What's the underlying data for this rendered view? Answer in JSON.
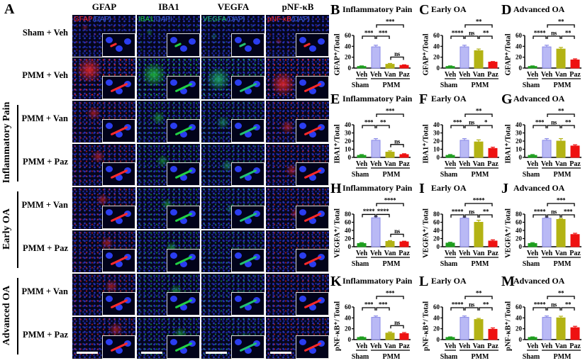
{
  "figure": {
    "panel_a_letter": "A",
    "columns": [
      {
        "header": "GFAP",
        "marker": "GFAP",
        "dapi": "/DAPI",
        "color": "#ff2a2a"
      },
      {
        "header": "IBA1",
        "marker": "IBA1",
        "dapi": "/DAPI",
        "color": "#22d044"
      },
      {
        "header": "VEGFA",
        "marker": "VEGFA",
        "dapi": "/DAPI",
        "color": "#22c070"
      },
      {
        "header": "pNF-κB",
        "marker": "pNF-κB",
        "dapi": "/DAPI",
        "color": "#ff2a2a"
      }
    ],
    "rows": [
      "Sham + Veh",
      "PMM + Veh",
      "PMM + Van",
      "PMM + Paz",
      "PMM + Van",
      "PMM + Paz",
      "PMM + Van",
      "PMM + Paz"
    ],
    "groups": [
      "Inflammatory Pain",
      "Early OA",
      "Advanced OA"
    ]
  },
  "chart_data": [
    {
      "panel": "B",
      "type": "bar",
      "title": "Inflammatory Pain",
      "ylabel": "GFAP⁺/Total",
      "ylim": [
        0,
        60
      ],
      "yticks": [
        0,
        20,
        40,
        60
      ],
      "categories": [
        "Veh",
        "Veh",
        "Van",
        "Paz"
      ],
      "groups": [
        "Sham",
        "PMM"
      ],
      "values": [
        3,
        39,
        7,
        5
      ],
      "errors": [
        1,
        3,
        1.5,
        1
      ],
      "colors": [
        "#1e9e1e",
        "#b9b9f5",
        "#b3b314",
        "#ee1111"
      ],
      "comparisons": [
        {
          "a": 0,
          "b": 1,
          "label": "***"
        },
        {
          "a": 1,
          "b": 2,
          "label": "***"
        },
        {
          "a": 2,
          "b": 3,
          "label": "ns"
        },
        {
          "a": 1,
          "b": 3,
          "label": "***"
        }
      ]
    },
    {
      "panel": "C",
      "type": "bar",
      "title": "Early   OA",
      "ylabel": "GFAP⁺/Total",
      "ylim": [
        0,
        60
      ],
      "yticks": [
        0,
        20,
        40,
        60
      ],
      "categories": [
        "Veh",
        "Veh",
        "Van",
        "Paz"
      ],
      "groups": [
        "Sham",
        "PMM"
      ],
      "values": [
        3,
        39,
        32,
        11
      ],
      "errors": [
        1,
        3,
        3,
        1
      ],
      "colors": [
        "#1e9e1e",
        "#b9b9f5",
        "#b3b314",
        "#ee1111"
      ],
      "comparisons": [
        {
          "a": 0,
          "b": 1,
          "label": "****"
        },
        {
          "a": 1,
          "b": 2,
          "label": "ns"
        },
        {
          "a": 2,
          "b": 3,
          "label": "**"
        },
        {
          "a": 1,
          "b": 3,
          "label": "**"
        }
      ]
    },
    {
      "panel": "D",
      "type": "bar",
      "title": "Advanced  OA",
      "ylabel": "GFAP⁺/Total",
      "ylim": [
        0,
        60
      ],
      "yticks": [
        0,
        20,
        40,
        60
      ],
      "categories": [
        "Veh",
        "Veh",
        "Van",
        "Paz"
      ],
      "groups": [
        "Sham",
        "PMM"
      ],
      "values": [
        3,
        39,
        35,
        15
      ],
      "errors": [
        1,
        3,
        3,
        2
      ],
      "colors": [
        "#1e9e1e",
        "#b9b9f5",
        "#b3b314",
        "#ee1111"
      ],
      "comparisons": [
        {
          "a": 0,
          "b": 1,
          "label": "****"
        },
        {
          "a": 1,
          "b": 2,
          "label": "ns"
        },
        {
          "a": 2,
          "b": 3,
          "label": "**"
        },
        {
          "a": 1,
          "b": 3,
          "label": "**"
        }
      ]
    },
    {
      "panel": "E",
      "type": "bar",
      "title": "Inflammatory Pain",
      "ylabel": "IBA1⁺/Total",
      "ylim": [
        0,
        40
      ],
      "yticks": [
        0,
        10,
        20,
        30,
        40
      ],
      "categories": [
        "Veh",
        "Veh",
        "Van",
        "Paz"
      ],
      "groups": [
        "Sham",
        "PMM"
      ],
      "values": [
        2.5,
        21,
        6.5,
        3.5
      ],
      "errors": [
        1,
        2,
        1.5,
        1
      ],
      "colors": [
        "#1e9e1e",
        "#b9b9f5",
        "#b3b314",
        "#ee1111"
      ],
      "comparisons": [
        {
          "a": 0,
          "b": 1,
          "label": "***"
        },
        {
          "a": 1,
          "b": 2,
          "label": "**"
        },
        {
          "a": 2,
          "b": 3,
          "label": "ns"
        },
        {
          "a": 1,
          "b": 3,
          "label": "***"
        }
      ]
    },
    {
      "panel": "F",
      "type": "bar",
      "title": "Early   OA",
      "ylabel": "IBA1⁺/Total",
      "ylim": [
        0,
        40
      ],
      "yticks": [
        0,
        10,
        20,
        30,
        40
      ],
      "categories": [
        "Veh",
        "Veh",
        "Van",
        "Paz"
      ],
      "groups": [
        "Sham",
        "PMM"
      ],
      "values": [
        2.5,
        21,
        19,
        11
      ],
      "errors": [
        1,
        2,
        2.5,
        1.5
      ],
      "colors": [
        "#1e9e1e",
        "#b9b9f5",
        "#b3b314",
        "#ee1111"
      ],
      "comparisons": [
        {
          "a": 0,
          "b": 1,
          "label": "***"
        },
        {
          "a": 1,
          "b": 2,
          "label": "ns"
        },
        {
          "a": 2,
          "b": 3,
          "label": "*"
        },
        {
          "a": 1,
          "b": 3,
          "label": "**"
        }
      ]
    },
    {
      "panel": "G",
      "type": "bar",
      "title": "Advanced  OA",
      "ylabel": "IBA1⁺/Total",
      "ylim": [
        0,
        40
      ],
      "yticks": [
        0,
        10,
        20,
        30,
        40
      ],
      "categories": [
        "Veh",
        "Veh",
        "Van",
        "Paz"
      ],
      "groups": [
        "Sham",
        "PMM"
      ],
      "values": [
        2.5,
        21,
        20,
        14
      ],
      "errors": [
        1,
        2,
        3,
        1.5
      ],
      "colors": [
        "#1e9e1e",
        "#b9b9f5",
        "#b3b314",
        "#ee1111"
      ],
      "comparisons": [
        {
          "a": 0,
          "b": 1,
          "label": "***"
        },
        {
          "a": 1,
          "b": 2,
          "label": "ns"
        },
        {
          "a": 2,
          "b": 3,
          "label": "**"
        },
        {
          "a": 1,
          "b": 3,
          "label": "**"
        }
      ]
    },
    {
      "panel": "H",
      "type": "bar",
      "title": "Inflammatory Pain",
      "ylabel": "VEGFA⁺/ Total",
      "ylim": [
        0,
        80
      ],
      "yticks": [
        0,
        20,
        40,
        60,
        80
      ],
      "categories": [
        "Veh",
        "Veh",
        "Van",
        "Paz"
      ],
      "groups": [
        "Sham",
        "PMM"
      ],
      "values": [
        8,
        71,
        13,
        12
      ],
      "errors": [
        2,
        3,
        2,
        1.5
      ],
      "colors": [
        "#1e9e1e",
        "#b9b9f5",
        "#b3b314",
        "#ee1111"
      ],
      "comparisons": [
        {
          "a": 0,
          "b": 1,
          "label": "****"
        },
        {
          "a": 1,
          "b": 2,
          "label": "****"
        },
        {
          "a": 2,
          "b": 3,
          "label": "ns"
        },
        {
          "a": 1,
          "b": 3,
          "label": "****"
        }
      ]
    },
    {
      "panel": "I",
      "type": "bar",
      "title": "Early   OA",
      "ylabel": "VEGFA⁺/ Total",
      "ylim": [
        0,
        80
      ],
      "yticks": [
        0,
        20,
        40,
        60,
        80
      ],
      "categories": [
        "Veh",
        "Veh",
        "Van",
        "Paz"
      ],
      "groups": [
        "Sham",
        "PMM"
      ],
      "values": [
        9,
        70,
        60,
        14
      ],
      "errors": [
        2,
        3,
        5,
        3
      ],
      "colors": [
        "#1e9e1e",
        "#b9b9f5",
        "#b3b314",
        "#ee1111"
      ],
      "comparisons": [
        {
          "a": 0,
          "b": 1,
          "label": "****"
        },
        {
          "a": 1,
          "b": 2,
          "label": "ns"
        },
        {
          "a": 2,
          "b": 3,
          "label": "**"
        },
        {
          "a": 1,
          "b": 3,
          "label": "****"
        }
      ]
    },
    {
      "panel": "J",
      "type": "bar",
      "title": "Advanced OA",
      "ylabel": "VEGFA⁺/ Total",
      "ylim": [
        0,
        80
      ],
      "yticks": [
        0,
        20,
        40,
        60,
        80
      ],
      "categories": [
        "Veh",
        "Veh",
        "Van",
        "Paz"
      ],
      "groups": [
        "Sham",
        "PMM"
      ],
      "values": [
        8,
        70,
        67,
        30
      ],
      "errors": [
        2,
        3,
        2,
        3
      ],
      "colors": [
        "#1e9e1e",
        "#b9b9f5",
        "#b3b314",
        "#ee1111"
      ],
      "comparisons": [
        {
          "a": 0,
          "b": 1,
          "label": "****"
        },
        {
          "a": 1,
          "b": 2,
          "label": "ns"
        },
        {
          "a": 2,
          "b": 3,
          "label": "***"
        },
        {
          "a": 1,
          "b": 3,
          "label": "***"
        }
      ]
    },
    {
      "panel": "K",
      "type": "bar",
      "title": "Inflammatory Pain",
      "ylabel": "pNF-κB⁺/ Total",
      "ylim": [
        0,
        60
      ],
      "yticks": [
        0,
        20,
        40,
        60
      ],
      "categories": [
        "Veh",
        "Veh",
        "Van",
        "Paz"
      ],
      "groups": [
        "Sham",
        "PMM"
      ],
      "values": [
        4,
        41,
        12,
        11
      ],
      "errors": [
        1,
        2.5,
        2,
        2
      ],
      "colors": [
        "#1e9e1e",
        "#b9b9f5",
        "#b3b314",
        "#ee1111"
      ],
      "comparisons": [
        {
          "a": 0,
          "b": 1,
          "label": "***"
        },
        {
          "a": 1,
          "b": 2,
          "label": "***"
        },
        {
          "a": 2,
          "b": 3,
          "label": "ns"
        },
        {
          "a": 1,
          "b": 3,
          "label": "***"
        }
      ]
    },
    {
      "panel": "L",
      "type": "bar",
      "title": "Early   OA",
      "ylabel": "pNF-κB⁺/ Total",
      "ylim": [
        0,
        60
      ],
      "yticks": [
        0,
        20,
        40,
        60
      ],
      "categories": [
        "Veh",
        "Veh",
        "Van",
        "Paz"
      ],
      "groups": [
        "Sham",
        "PMM"
      ],
      "values": [
        4,
        41,
        37,
        19
      ],
      "errors": [
        1,
        2.5,
        2,
        2.5
      ],
      "colors": [
        "#1e9e1e",
        "#b9b9f5",
        "#b3b314",
        "#ee1111"
      ],
      "comparisons": [
        {
          "a": 0,
          "b": 1,
          "label": "****"
        },
        {
          "a": 1,
          "b": 2,
          "label": "ns"
        },
        {
          "a": 2,
          "b": 3,
          "label": "**"
        },
        {
          "a": 1,
          "b": 3,
          "label": "**"
        }
      ]
    },
    {
      "panel": "M",
      "type": "bar",
      "title": "Advanced OA",
      "ylabel": "pNF-κB⁺/ Total",
      "ylim": [
        0,
        60
      ],
      "yticks": [
        0,
        20,
        40,
        60
      ],
      "categories": [
        "Veh",
        "Veh",
        "Van",
        "Paz"
      ],
      "groups": [
        "Sham",
        "PMM"
      ],
      "values": [
        4,
        41,
        40,
        22
      ],
      "errors": [
        1,
        2.5,
        3,
        2.5
      ],
      "colors": [
        "#1e9e1e",
        "#b9b9f5",
        "#b3b314",
        "#ee1111"
      ],
      "comparisons": [
        {
          "a": 0,
          "b": 1,
          "label": "****"
        },
        {
          "a": 1,
          "b": 2,
          "label": "ns"
        },
        {
          "a": 2,
          "b": 3,
          "label": "**"
        },
        {
          "a": 1,
          "b": 3,
          "label": "**"
        }
      ]
    }
  ]
}
